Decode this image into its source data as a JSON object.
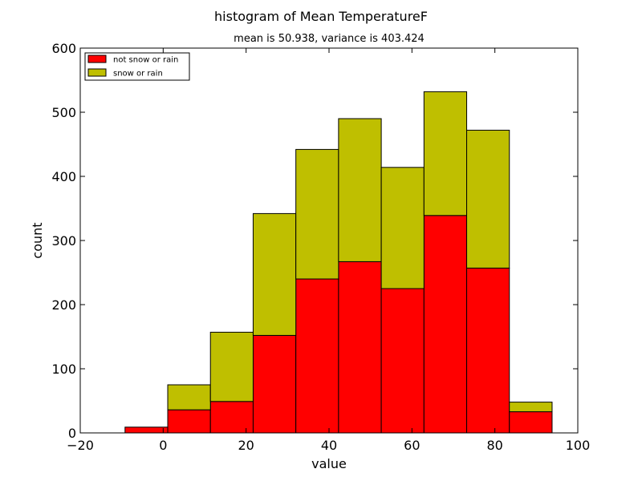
{
  "chart_data": {
    "type": "bar",
    "stacked": true,
    "title": "histogram of Mean TemperatureF",
    "subtitle": "mean is 50.938, variance is 403.424",
    "xlabel": "value",
    "ylabel": "count",
    "xlim": [
      -20,
      100
    ],
    "ylim": [
      0,
      600
    ],
    "xticks": [
      "−20",
      "0",
      "20",
      "40",
      "60",
      "80",
      "100"
    ],
    "yticks": [
      "0",
      "100",
      "200",
      "300",
      "400",
      "500",
      "600"
    ],
    "grid": false,
    "legend_position": "top-left",
    "bin_edges": [
      -9.2,
      1.1,
      11.4,
      21.7,
      32.0,
      42.3,
      52.6,
      62.9,
      73.2,
      83.5,
      93.8
    ],
    "series": [
      {
        "name": "not snow or rain",
        "color": "#ff0000",
        "values": [
          9,
          36,
          49,
          152,
          240,
          267,
          225,
          339,
          257,
          33
        ]
      },
      {
        "name": "snow or rain",
        "color": "#bfbf00",
        "values": [
          0,
          39,
          108,
          190,
          202,
          223,
          189,
          193,
          215,
          15
        ]
      }
    ]
  }
}
